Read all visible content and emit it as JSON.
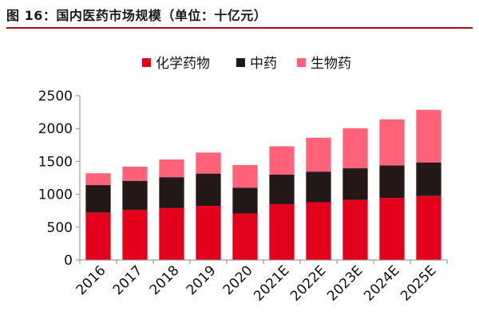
{
  "title": "图 16：国内医药市场规模（单位：十亿元）",
  "colors": {
    "title_rule": "#c0001a",
    "axis": "#888888"
  },
  "chart_data": {
    "type": "bar",
    "stacked": true,
    "title": "图 16：国内医药市场规模（单位：十亿元）",
    "xlabel": "",
    "ylabel": "",
    "categories": [
      "2016",
      "2017",
      "2018",
      "2019",
      "2020",
      "2021E",
      "2022E",
      "2023E",
      "2024E",
      "2025E"
    ],
    "ylim": [
      0,
      2500
    ],
    "yticks": [
      "0",
      "500",
      "1000",
      "1500",
      "2000",
      "2500"
    ],
    "grid": false,
    "legend": "top",
    "series": [
      {
        "name": "化学药物",
        "color": "#e3001b",
        "values": [
          720,
          760,
          790,
          825,
          710,
          850,
          880,
          915,
          945,
          975
        ]
      },
      {
        "name": "中药",
        "color": "#231815",
        "values": [
          420,
          445,
          470,
          490,
          390,
          450,
          465,
          480,
          495,
          510
        ]
      },
      {
        "name": "生物药",
        "color": "#ff6279",
        "values": [
          180,
          215,
          270,
          320,
          345,
          430,
          515,
          610,
          700,
          800
        ]
      }
    ]
  }
}
